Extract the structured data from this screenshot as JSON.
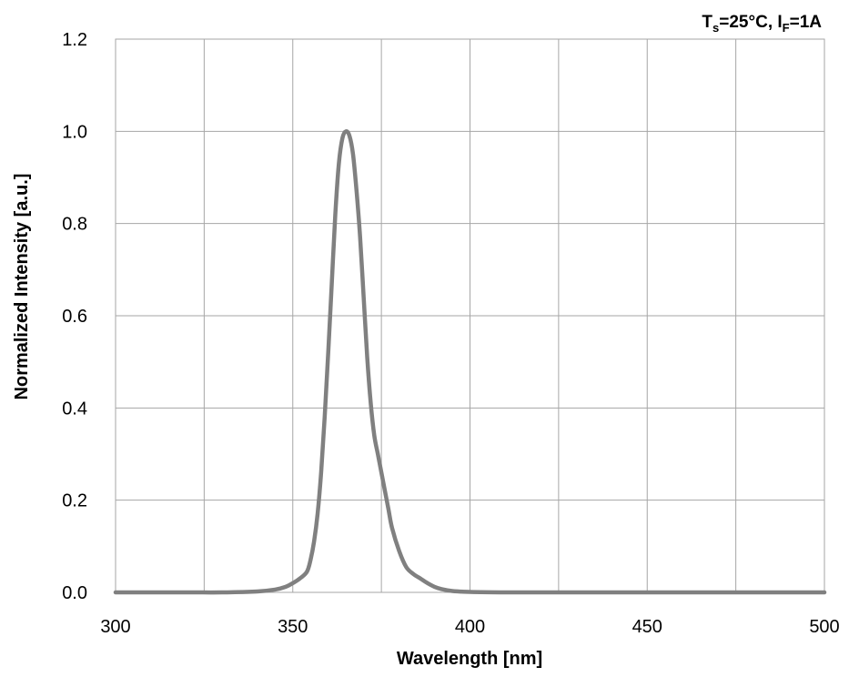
{
  "chart_data": {
    "type": "line",
    "xlabel": "Wavelength [nm]",
    "ylabel": "Normalized Intensity [a.u.]",
    "xlim": [
      300,
      500
    ],
    "ylim": [
      0,
      1.2
    ],
    "x_ticks": [
      "300",
      "350",
      "400",
      "450",
      "500"
    ],
    "y_ticks": [
      "0.0",
      "0.2",
      "0.4",
      "0.6",
      "0.8",
      "1.0",
      "1.2"
    ],
    "grid": true,
    "conditions": {
      "ts_symbol": "T",
      "ts_subscript": "s",
      "ts_value": "=25°C, ",
      "if_symbol": "I",
      "if_subscript": "F",
      "if_value": "=1A"
    },
    "series": [
      {
        "color": "#808080",
        "x": [
          300,
          320,
          330,
          340,
          345,
          348,
          350,
          352,
          354,
          355,
          356,
          357,
          358,
          359,
          360,
          361,
          362,
          363,
          364,
          365,
          366,
          367,
          368,
          369,
          370,
          371,
          372,
          373,
          374,
          375,
          376,
          377,
          378,
          380,
          382,
          384,
          386,
          388,
          390,
          392,
          395,
          400,
          410,
          420,
          450,
          500
        ],
        "y": [
          0.0,
          0.0,
          0.0,
          0.002,
          0.006,
          0.012,
          0.02,
          0.03,
          0.045,
          0.07,
          0.11,
          0.17,
          0.26,
          0.38,
          0.52,
          0.67,
          0.82,
          0.93,
          0.985,
          1.0,
          0.99,
          0.95,
          0.87,
          0.77,
          0.64,
          0.51,
          0.41,
          0.34,
          0.3,
          0.26,
          0.22,
          0.18,
          0.14,
          0.09,
          0.055,
          0.04,
          0.03,
          0.02,
          0.012,
          0.007,
          0.003,
          0.001,
          0.0,
          0.0,
          0.0,
          0.0
        ]
      }
    ]
  }
}
